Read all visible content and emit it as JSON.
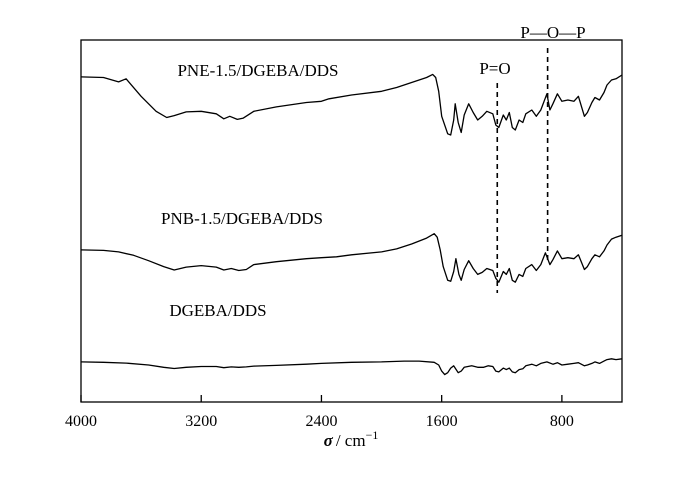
{
  "chart_data": {
    "type": "line",
    "title": "",
    "xlabel": "σ / cm⁻¹",
    "xlabel_symbol": "σ",
    "xlabel_unit": "/ cm",
    "xlabel_exp": "−1",
    "ylabel": "",
    "xlim": [
      4000,
      400
    ],
    "x_reversed": true,
    "x_ticks": [
      4000,
      3200,
      2400,
      1600,
      800
    ],
    "y_ticks_shown": false,
    "grid": false,
    "legend": "none",
    "annotations": [
      {
        "label": "P=O",
        "x": 1230
      },
      {
        "label": "P—O—P",
        "x": 895
      }
    ],
    "series": [
      {
        "name": "PNE-1.5/DGEBA/DDS",
        "points": [
          [
            4000,
            0.865
          ],
          [
            3850,
            0.86
          ],
          [
            3750,
            0.825
          ],
          [
            3700,
            0.85
          ],
          [
            3600,
            0.71
          ],
          [
            3500,
            0.59
          ],
          [
            3430,
            0.54
          ],
          [
            3380,
            0.555
          ],
          [
            3300,
            0.585
          ],
          [
            3200,
            0.59
          ],
          [
            3100,
            0.57
          ],
          [
            3050,
            0.53
          ],
          [
            3010,
            0.55
          ],
          [
            2960,
            0.525
          ],
          [
            2920,
            0.535
          ],
          [
            2850,
            0.59
          ],
          [
            2700,
            0.625
          ],
          [
            2500,
            0.66
          ],
          [
            2400,
            0.67
          ],
          [
            2350,
            0.69
          ],
          [
            2200,
            0.72
          ],
          [
            2000,
            0.75
          ],
          [
            1900,
            0.78
          ],
          [
            1800,
            0.82
          ],
          [
            1700,
            0.86
          ],
          [
            1660,
            0.885
          ],
          [
            1640,
            0.86
          ],
          [
            1620,
            0.75
          ],
          [
            1600,
            0.55
          ],
          [
            1560,
            0.41
          ],
          [
            1540,
            0.4
          ],
          [
            1520,
            0.52
          ],
          [
            1510,
            0.65
          ],
          [
            1490,
            0.5
          ],
          [
            1470,
            0.42
          ],
          [
            1450,
            0.56
          ],
          [
            1420,
            0.65
          ],
          [
            1390,
            0.58
          ],
          [
            1360,
            0.52
          ],
          [
            1330,
            0.55
          ],
          [
            1300,
            0.59
          ],
          [
            1260,
            0.57
          ],
          [
            1240,
            0.48
          ],
          [
            1220,
            0.46
          ],
          [
            1190,
            0.56
          ],
          [
            1170,
            0.52
          ],
          [
            1150,
            0.58
          ],
          [
            1130,
            0.46
          ],
          [
            1110,
            0.44
          ],
          [
            1085,
            0.52
          ],
          [
            1060,
            0.5
          ],
          [
            1040,
            0.57
          ],
          [
            1000,
            0.6
          ],
          [
            970,
            0.55
          ],
          [
            940,
            0.6
          ],
          [
            900,
            0.73
          ],
          [
            880,
            0.6
          ],
          [
            860,
            0.65
          ],
          [
            830,
            0.73
          ],
          [
            800,
            0.67
          ],
          [
            760,
            0.68
          ],
          [
            720,
            0.67
          ],
          [
            690,
            0.71
          ],
          [
            650,
            0.55
          ],
          [
            630,
            0.58
          ],
          [
            600,
            0.66
          ],
          [
            580,
            0.7
          ],
          [
            550,
            0.68
          ],
          [
            520,
            0.74
          ],
          [
            500,
            0.8
          ],
          [
            470,
            0.84
          ],
          [
            440,
            0.85
          ],
          [
            400,
            0.88
          ]
        ]
      },
      {
        "name": "PNB-1.5/DGEBA/DDS",
        "points": [
          [
            4000,
            0.45
          ],
          [
            3850,
            0.445
          ],
          [
            3750,
            0.43
          ],
          [
            3650,
            0.395
          ],
          [
            3550,
            0.34
          ],
          [
            3450,
            0.28
          ],
          [
            3380,
            0.245
          ],
          [
            3300,
            0.275
          ],
          [
            3200,
            0.29
          ],
          [
            3100,
            0.275
          ],
          [
            3050,
            0.245
          ],
          [
            3000,
            0.26
          ],
          [
            2950,
            0.24
          ],
          [
            2900,
            0.25
          ],
          [
            2850,
            0.3
          ],
          [
            2700,
            0.33
          ],
          [
            2500,
            0.36
          ],
          [
            2400,
            0.37
          ],
          [
            2300,
            0.38
          ],
          [
            2200,
            0.4
          ],
          [
            2000,
            0.43
          ],
          [
            1900,
            0.46
          ],
          [
            1800,
            0.51
          ],
          [
            1700,
            0.57
          ],
          [
            1650,
            0.615
          ],
          [
            1630,
            0.58
          ],
          [
            1610,
            0.45
          ],
          [
            1590,
            0.28
          ],
          [
            1560,
            0.14
          ],
          [
            1540,
            0.13
          ],
          [
            1520,
            0.23
          ],
          [
            1505,
            0.36
          ],
          [
            1485,
            0.2
          ],
          [
            1470,
            0.14
          ],
          [
            1450,
            0.25
          ],
          [
            1420,
            0.34
          ],
          [
            1390,
            0.26
          ],
          [
            1360,
            0.2
          ],
          [
            1330,
            0.22
          ],
          [
            1300,
            0.26
          ],
          [
            1260,
            0.24
          ],
          [
            1240,
            0.16
          ],
          [
            1220,
            0.12
          ],
          [
            1190,
            0.23
          ],
          [
            1170,
            0.2
          ],
          [
            1150,
            0.26
          ],
          [
            1130,
            0.14
          ],
          [
            1110,
            0.12
          ],
          [
            1085,
            0.2
          ],
          [
            1060,
            0.18
          ],
          [
            1040,
            0.26
          ],
          [
            1000,
            0.3
          ],
          [
            970,
            0.24
          ],
          [
            940,
            0.3
          ],
          [
            910,
            0.42
          ],
          [
            880,
            0.3
          ],
          [
            860,
            0.35
          ],
          [
            830,
            0.44
          ],
          [
            800,
            0.36
          ],
          [
            760,
            0.37
          ],
          [
            720,
            0.36
          ],
          [
            690,
            0.4
          ],
          [
            650,
            0.25
          ],
          [
            630,
            0.28
          ],
          [
            600,
            0.36
          ],
          [
            580,
            0.4
          ],
          [
            550,
            0.38
          ],
          [
            520,
            0.44
          ],
          [
            500,
            0.5
          ],
          [
            470,
            0.56
          ],
          [
            440,
            0.58
          ],
          [
            400,
            0.6
          ]
        ]
      },
      {
        "name": "DGEBA/DDS",
        "points": [
          [
            4000,
            0.17
          ],
          [
            3850,
            0.165
          ],
          [
            3700,
            0.155
          ],
          [
            3550,
            0.13
          ],
          [
            3450,
            0.1
          ],
          [
            3380,
            0.085
          ],
          [
            3300,
            0.1
          ],
          [
            3200,
            0.11
          ],
          [
            3100,
            0.11
          ],
          [
            3050,
            0.095
          ],
          [
            3000,
            0.105
          ],
          [
            2950,
            0.1
          ],
          [
            2900,
            0.105
          ],
          [
            2850,
            0.115
          ],
          [
            2700,
            0.125
          ],
          [
            2500,
            0.14
          ],
          [
            2400,
            0.15
          ],
          [
            2200,
            0.165
          ],
          [
            2000,
            0.17
          ],
          [
            1850,
            0.18
          ],
          [
            1750,
            0.18
          ],
          [
            1650,
            0.165
          ],
          [
            1620,
            0.13
          ],
          [
            1600,
            0.05
          ],
          [
            1580,
            0.005
          ],
          [
            1560,
            0.03
          ],
          [
            1540,
            0.09
          ],
          [
            1520,
            0.12
          ],
          [
            1510,
            0.09
          ],
          [
            1490,
            0.03
          ],
          [
            1470,
            0.05
          ],
          [
            1450,
            0.1
          ],
          [
            1400,
            0.12
          ],
          [
            1360,
            0.1
          ],
          [
            1320,
            0.1
          ],
          [
            1290,
            0.12
          ],
          [
            1260,
            0.11
          ],
          [
            1240,
            0.05
          ],
          [
            1220,
            0.04
          ],
          [
            1190,
            0.09
          ],
          [
            1170,
            0.07
          ],
          [
            1150,
            0.09
          ],
          [
            1130,
            0.04
          ],
          [
            1110,
            0.03
          ],
          [
            1085,
            0.07
          ],
          [
            1060,
            0.08
          ],
          [
            1040,
            0.12
          ],
          [
            1000,
            0.14
          ],
          [
            970,
            0.12
          ],
          [
            940,
            0.15
          ],
          [
            900,
            0.17
          ],
          [
            860,
            0.14
          ],
          [
            830,
            0.16
          ],
          [
            800,
            0.13
          ],
          [
            760,
            0.14
          ],
          [
            720,
            0.15
          ],
          [
            690,
            0.16
          ],
          [
            650,
            0.12
          ],
          [
            630,
            0.13
          ],
          [
            600,
            0.15
          ],
          [
            580,
            0.17
          ],
          [
            550,
            0.15
          ],
          [
            520,
            0.18
          ],
          [
            500,
            0.2
          ],
          [
            470,
            0.21
          ],
          [
            440,
            0.2
          ],
          [
            400,
            0.21
          ]
        ]
      }
    ]
  }
}
